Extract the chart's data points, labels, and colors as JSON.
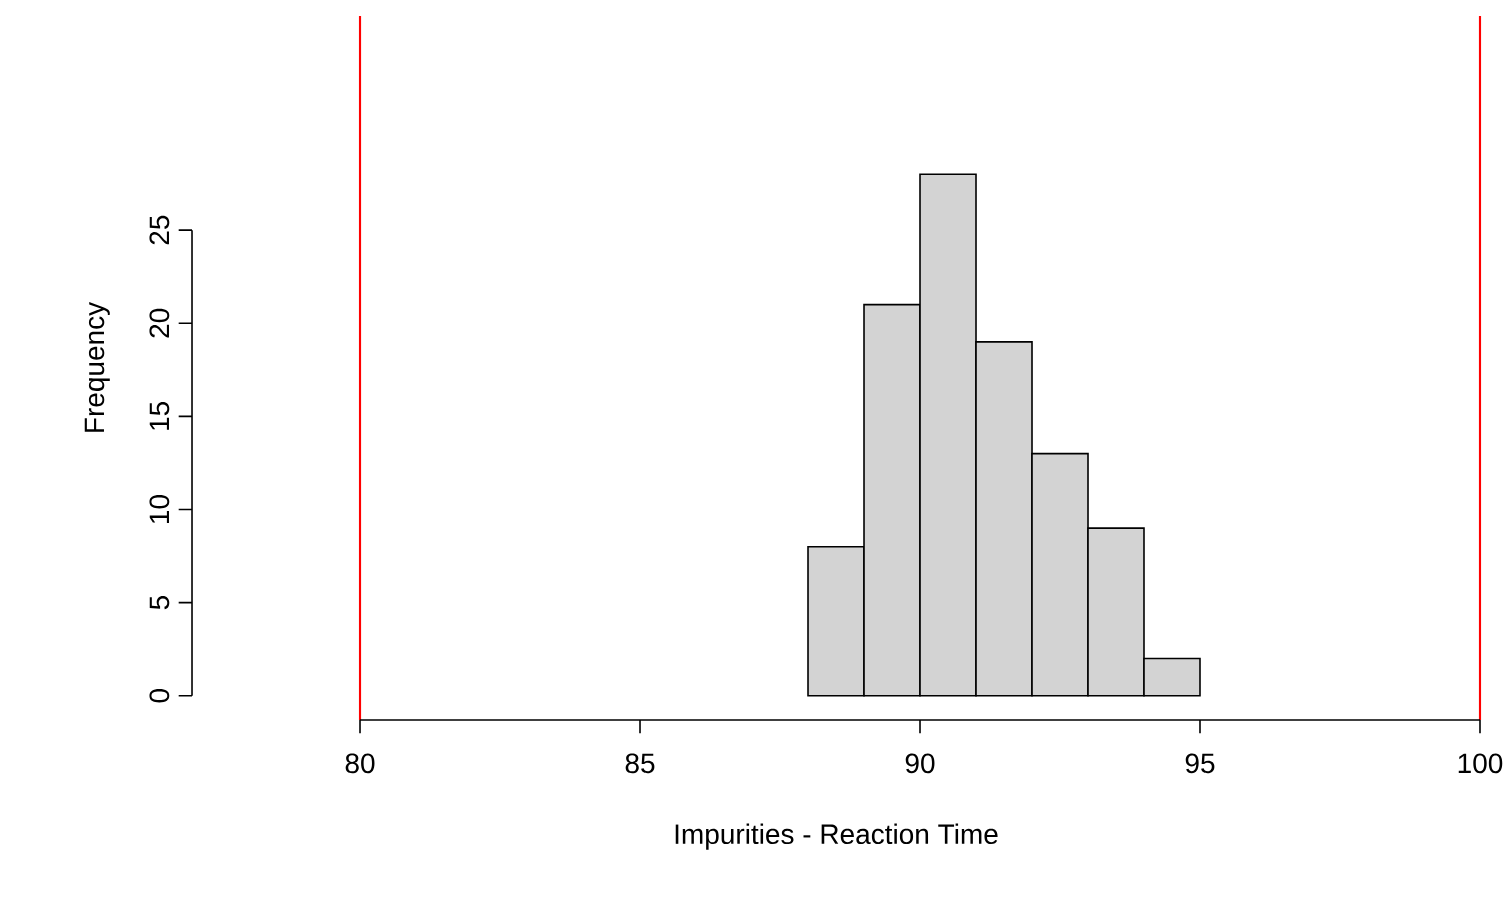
{
  "chart_data": {
    "type": "histogram",
    "xlabel": "Impurities - Reaction Time",
    "ylabel": "Frequency",
    "bins": [
      88,
      89,
      90,
      91,
      92,
      93,
      94,
      95
    ],
    "values": [
      8,
      21,
      28,
      19,
      13,
      9,
      2
    ],
    "color": "#d3d3d3",
    "xlim": [
      77,
      100
    ],
    "ylim": [
      -1.3,
      36.5
    ],
    "xticks": [
      80,
      85,
      90,
      95,
      100
    ],
    "yticks": [
      0,
      5,
      10,
      15,
      20,
      25
    ],
    "grid": false,
    "ref_lines": [
      {
        "axis": "x",
        "value": 80,
        "color": "#ff0000"
      },
      {
        "axis": "x",
        "value": 100,
        "color": "#ff0000"
      }
    ]
  }
}
